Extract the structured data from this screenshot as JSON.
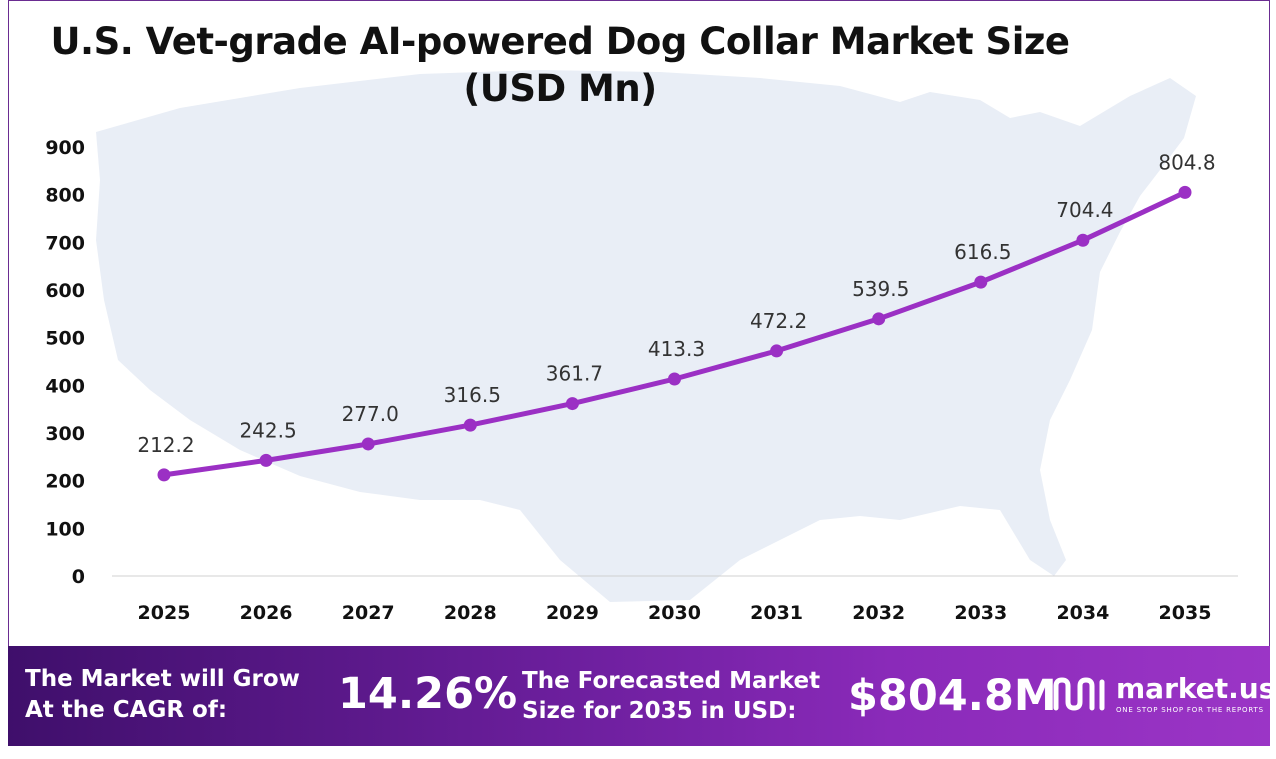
{
  "chart_data": {
    "type": "line",
    "title": "U.S. Vet-grade AI-powered Dog Collar Market Size",
    "subtitle": "(USD Mn)",
    "categories": [
      "2025",
      "2026",
      "2027",
      "2028",
      "2029",
      "2030",
      "2031",
      "2032",
      "2033",
      "2034",
      "2035"
    ],
    "series": [
      {
        "values": [
          212.2,
          242.5,
          277.0,
          316.5,
          361.7,
          413.3,
          472.2,
          539.5,
          616.5,
          704.4,
          804.8
        ]
      }
    ],
    "data_labels": [
      "212.2",
      "242.5",
      "277.0",
      "316.5",
      "361.7",
      "413.3",
      "472.2",
      "539.5",
      "616.5",
      "704.4",
      "804.8"
    ],
    "ylim": [
      0,
      900
    ],
    "yticks": [
      0,
      100,
      200,
      300,
      400,
      500,
      600,
      700,
      800,
      900
    ],
    "grid": false,
    "legend": "none",
    "line_color": "#9b30c4",
    "background_map_color": "#e9eef6"
  },
  "footer": {
    "cagr_label": "The Market will Grow At the CAGR of:",
    "cagr_value": "14.26%",
    "forecast_label": "The Forecasted Market Size for 2035 in USD:",
    "forecast_value": "$804.8M",
    "brand_name": "market.us",
    "brand_tagline": "ONE STOP SHOP FOR THE REPORTS"
  },
  "colors": {
    "footer_gradient_start": "#3f0f6b",
    "footer_gradient_end": "#9b35c6",
    "frame_border": "#6a2c91"
  }
}
